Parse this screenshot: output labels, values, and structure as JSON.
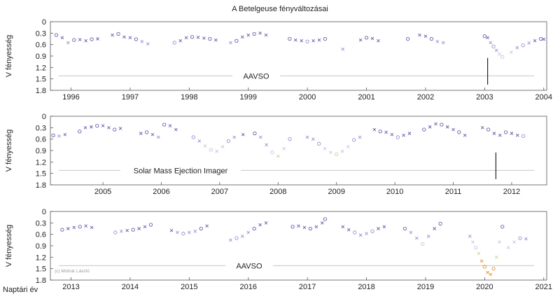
{
  "chart_data": [
    {
      "type": "scatter",
      "title": "A Betelgeuse fényváltozásai",
      "ylabel": "V fényesség",
      "xlim": [
        1995.65,
        2004.05
      ],
      "ylim": [
        1.8,
        0
      ],
      "yticks": [
        "0",
        "0.3",
        "0.6",
        "0.9",
        "1.2",
        "1.5",
        "1.8"
      ],
      "xticks": [
        1996,
        1997,
        1998,
        1999,
        2000,
        2001,
        2002,
        2003,
        2004
      ],
      "annotation": "AAVSO",
      "marker_line_at": 2003.05,
      "series": [
        {
          "x": [
            1995.75,
            1995.85,
            1995.95,
            1996.05,
            1996.15,
            1996.25,
            1996.35,
            1996.45,
            1996.7,
            1996.8,
            1996.9,
            1997.0,
            1997.1,
            1997.2,
            1997.3,
            1997.75,
            1997.85,
            1997.95,
            1998.05,
            1998.15,
            1998.25,
            1998.35,
            1998.45,
            1998.7,
            1998.8,
            1998.9,
            1999.0,
            1999.1,
            1999.2,
            1999.3,
            1999.7,
            1999.8,
            1999.9,
            2000.0,
            2000.1,
            2000.2,
            2000.3,
            2000.6,
            2000.9,
            2001.0,
            2001.1,
            2001.2,
            2001.7,
            2001.9,
            2002.0,
            2002.1,
            2002.2,
            2002.3,
            2003.0,
            2003.05,
            2003.1,
            2003.15,
            2003.2,
            2003.25,
            2003.3,
            2003.45,
            2003.55,
            2003.65,
            2003.75,
            2003.85,
            2003.95,
            2004.0
          ],
          "y": [
            0.35,
            0.42,
            0.55,
            0.48,
            0.47,
            0.5,
            0.46,
            0.45,
            0.35,
            0.32,
            0.4,
            0.42,
            0.46,
            0.52,
            0.58,
            0.55,
            0.5,
            0.42,
            0.4,
            0.41,
            0.43,
            0.45,
            0.48,
            0.55,
            0.5,
            0.4,
            0.35,
            0.32,
            0.3,
            0.35,
            0.45,
            0.48,
            0.5,
            0.52,
            0.5,
            0.48,
            0.45,
            0.72,
            0.48,
            0.42,
            0.44,
            0.5,
            0.45,
            0.35,
            0.38,
            0.45,
            0.52,
            0.55,
            0.38,
            0.42,
            0.55,
            0.65,
            0.75,
            0.85,
            0.92,
            0.8,
            0.68,
            0.62,
            0.56,
            0.5,
            0.45,
            0.46
          ]
        }
      ]
    },
    {
      "type": "scatter",
      "ylabel": "V fényesség",
      "xlim": [
        2004.1,
        2012.6
      ],
      "ylim": [
        1.8,
        0
      ],
      "yticks": [
        "0",
        "0.3",
        "0.6",
        "0.9",
        "1.2",
        "1.5",
        "1.8"
      ],
      "xticks": [
        2005,
        2006,
        2007,
        2008,
        2009,
        2010,
        2011,
        2012
      ],
      "annotation": "Solar Mass Ejection Imager",
      "marker_line_at": 2011.73,
      "series": [
        {
          "x": [
            2004.15,
            2004.25,
            2004.35,
            2004.6,
            2004.7,
            2004.8,
            2004.9,
            2005.0,
            2005.1,
            2005.2,
            2005.3,
            2005.65,
            2005.75,
            2005.85,
            2005.95,
            2006.05,
            2006.15,
            2006.25,
            2006.55,
            2006.65,
            2006.75,
            2006.85,
            2006.95,
            2007.05,
            2007.15,
            2007.25,
            2007.4,
            2007.6,
            2007.7,
            2007.8,
            2007.9,
            2008.0,
            2008.1,
            2008.2,
            2008.5,
            2008.6,
            2008.7,
            2008.8,
            2008.9,
            2009.0,
            2009.1,
            2009.2,
            2009.3,
            2009.4,
            2009.65,
            2009.75,
            2009.85,
            2009.95,
            2010.05,
            2010.15,
            2010.25,
            2010.5,
            2010.6,
            2010.7,
            2010.8,
            2010.9,
            2011.0,
            2011.1,
            2011.2,
            2011.5,
            2011.6,
            2011.7,
            2011.8,
            2011.9,
            2012.0,
            2012.1,
            2012.2
          ],
          "y": [
            0.5,
            0.52,
            0.48,
            0.4,
            0.3,
            0.28,
            0.25,
            0.25,
            0.3,
            0.35,
            0.32,
            0.45,
            0.42,
            0.48,
            0.55,
            0.22,
            0.25,
            0.35,
            0.55,
            0.65,
            0.78,
            0.88,
            0.92,
            0.8,
            0.65,
            0.55,
            0.48,
            0.45,
            0.55,
            0.75,
            0.95,
            1.05,
            0.85,
            0.6,
            0.55,
            0.6,
            0.72,
            0.85,
            0.95,
            1.0,
            0.92,
            0.8,
            0.62,
            0.55,
            0.35,
            0.4,
            0.42,
            0.48,
            0.55,
            0.5,
            0.45,
            0.35,
            0.28,
            0.2,
            0.22,
            0.28,
            0.35,
            0.42,
            0.5,
            0.3,
            0.35,
            0.45,
            0.5,
            0.42,
            0.45,
            0.5,
            0.52
          ]
        }
      ]
    },
    {
      "type": "scatter",
      "xlabel": "Naptári év",
      "ylabel": "V fényesség",
      "xlim": [
        2012.65,
        2021.05
      ],
      "ylim": [
        1.8,
        0
      ],
      "yticks": [
        "0",
        "0.3",
        "0.6",
        "0.9",
        "1.2",
        "1.5",
        "1.8"
      ],
      "xticks": [
        2013,
        2014,
        2015,
        2016,
        2017,
        2018,
        2019,
        2020,
        2021
      ],
      "annotation": "AAVSO",
      "credit": "(c) Molnár László",
      "series": [
        {
          "x": [
            2012.85,
            2012.95,
            2013.05,
            2013.15,
            2013.25,
            2013.35,
            2013.75,
            2013.85,
            2013.95,
            2014.05,
            2014.15,
            2014.25,
            2014.35,
            2014.7,
            2014.8,
            2014.9,
            2015.0,
            2015.1,
            2015.2,
            2015.3,
            2015.7,
            2015.8,
            2015.9,
            2016.0,
            2016.1,
            2016.2,
            2016.3,
            2016.75,
            2016.85,
            2016.95,
            2017.05,
            2017.15,
            2017.25,
            2017.3,
            2017.6,
            2017.7,
            2017.8,
            2017.9,
            2018.0,
            2018.1,
            2018.2,
            2018.3,
            2018.65,
            2018.75,
            2018.85,
            2018.95,
            2019.05,
            2019.15,
            2019.25,
            2019.75,
            2019.8,
            2019.85,
            2019.9,
            2019.95,
            2020.0,
            2020.05,
            2020.1,
            2020.15,
            2020.2,
            2020.25,
            2020.3,
            2020.4,
            2020.5,
            2020.6,
            2020.7
          ],
          "y": [
            0.48,
            0.45,
            0.42,
            0.4,
            0.38,
            0.42,
            0.55,
            0.52,
            0.5,
            0.48,
            0.45,
            0.4,
            0.35,
            0.5,
            0.55,
            0.58,
            0.55,
            0.52,
            0.45,
            0.38,
            0.75,
            0.7,
            0.65,
            0.55,
            0.45,
            0.35,
            0.3,
            0.4,
            0.38,
            0.42,
            0.45,
            0.4,
            0.3,
            0.2,
            0.4,
            0.48,
            0.55,
            0.62,
            0.58,
            0.52,
            0.45,
            0.4,
            0.45,
            0.55,
            0.7,
            0.85,
            0.65,
            0.45,
            0.32,
            0.65,
            0.8,
            0.95,
            1.1,
            1.3,
            1.45,
            1.6,
            1.65,
            1.5,
            1.2,
            0.8,
            0.4,
            0.95,
            0.8,
            0.7,
            0.72
          ]
        }
      ]
    }
  ]
}
